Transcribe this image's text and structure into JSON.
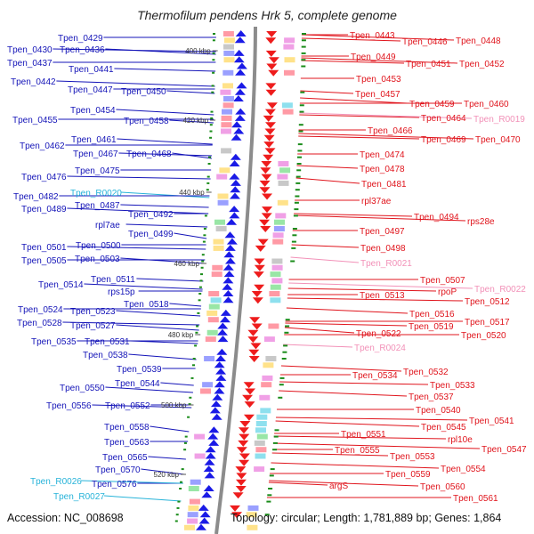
{
  "title": "Thermofilum pendens Hrk 5, complete genome",
  "accession": "Accession: NC_008698",
  "summary": "Topology: circular; Length: 1,781,889 bp; Genes: 1,864",
  "colors": {
    "left_gene": "#1414b8",
    "left_rna": "#27b3d9",
    "right_gene": "#e0141c",
    "right_rna": "#f291b8",
    "backbone": "#8c8c8c",
    "tick": "#1a8c1a"
  },
  "scale_labels": [
    "400 kbp",
    "420 kbp",
    "440 kbp",
    "460 kbp",
    "480 kbp",
    "500 kbp",
    "520 kbp"
  ],
  "left_genes": [
    {
      "label": "Tpen_0429",
      "type": "gene"
    },
    {
      "label": "Tpen_0430",
      "type": "gene"
    },
    {
      "label": "Tpen_0436",
      "type": "gene"
    },
    {
      "label": "Tpen_0437",
      "type": "gene"
    },
    {
      "label": "Tpen_0441",
      "type": "gene"
    },
    {
      "label": "Tpen_0442",
      "type": "gene"
    },
    {
      "label": "Tpen_0447",
      "type": "gene"
    },
    {
      "label": "Tpen_0450",
      "type": "gene"
    },
    {
      "label": "Tpen_0454",
      "type": "gene"
    },
    {
      "label": "Tpen_0455",
      "type": "gene"
    },
    {
      "label": "Tpen_0458",
      "type": "gene"
    },
    {
      "label": "Tpen_0461",
      "type": "gene"
    },
    {
      "label": "Tpen_0462",
      "type": "gene"
    },
    {
      "label": "Tpen_0467",
      "type": "gene"
    },
    {
      "label": "Tpen_0468",
      "type": "gene"
    },
    {
      "label": "Tpen_0475",
      "type": "gene"
    },
    {
      "label": "Tpen_0476",
      "type": "gene"
    },
    {
      "label": "Tpen_R0020",
      "type": "rna"
    },
    {
      "label": "Tpen_0482",
      "type": "gene"
    },
    {
      "label": "Tpen_0487",
      "type": "gene"
    },
    {
      "label": "Tpen_0489",
      "type": "gene"
    },
    {
      "label": "Tpen_0492",
      "type": "gene"
    },
    {
      "label": "rpl7ae",
      "type": "gene"
    },
    {
      "label": "Tpen_0499",
      "type": "gene"
    },
    {
      "label": "Tpen_0500",
      "type": "gene"
    },
    {
      "label": "Tpen_0501",
      "type": "gene"
    },
    {
      "label": "Tpen_0503",
      "type": "gene"
    },
    {
      "label": "Tpen_0505",
      "type": "gene"
    },
    {
      "label": "Tpen_0511",
      "type": "gene"
    },
    {
      "label": "Tpen_0514",
      "type": "gene"
    },
    {
      "label": "rps15p",
      "type": "gene"
    },
    {
      "label": "Tpen_0518",
      "type": "gene"
    },
    {
      "label": "Tpen_0523",
      "type": "gene"
    },
    {
      "label": "Tpen_0524",
      "type": "gene"
    },
    {
      "label": "Tpen_0528",
      "type": "gene"
    },
    {
      "label": "Tpen_0527",
      "type": "gene"
    },
    {
      "label": "Tpen_0535",
      "type": "gene"
    },
    {
      "label": "Tpen_0531",
      "type": "gene"
    },
    {
      "label": "Tpen_0538",
      "type": "gene"
    },
    {
      "label": "Tpen_0539",
      "type": "gene"
    },
    {
      "label": "Tpen_0544",
      "type": "gene"
    },
    {
      "label": "Tpen_0550",
      "type": "gene"
    },
    {
      "label": "Tpen_0552",
      "type": "gene"
    },
    {
      "label": "Tpen_0556",
      "type": "gene"
    },
    {
      "label": "Tpen_0558",
      "type": "gene"
    },
    {
      "label": "Tpen_0563",
      "type": "gene"
    },
    {
      "label": "Tpen_0565",
      "type": "gene"
    },
    {
      "label": "Tpen_0570",
      "type": "gene"
    },
    {
      "label": "Tpen_0576",
      "type": "gene"
    },
    {
      "label": "Tpen_R0026",
      "type": "rna"
    },
    {
      "label": "Tpen_R0027",
      "type": "rna"
    }
  ],
  "right_genes": [
    {
      "label": "Tpen_0443",
      "type": "gene"
    },
    {
      "label": "Tpen_0446",
      "type": "gene"
    },
    {
      "label": "Tpen_0448",
      "type": "gene"
    },
    {
      "label": "Tpen_0449",
      "type": "gene"
    },
    {
      "label": "Tpen_0451",
      "type": "gene"
    },
    {
      "label": "Tpen_0452",
      "type": "gene"
    },
    {
      "label": "Tpen_0453",
      "type": "gene"
    },
    {
      "label": "Tpen_0457",
      "type": "gene"
    },
    {
      "label": "Tpen_0459",
      "type": "gene"
    },
    {
      "label": "Tpen_0460",
      "type": "gene"
    },
    {
      "label": "Tpen_0464",
      "type": "gene"
    },
    {
      "label": "Tpen_R0019",
      "type": "rna"
    },
    {
      "label": "Tpen_0466",
      "type": "gene"
    },
    {
      "label": "Tpen_0469",
      "type": "gene"
    },
    {
      "label": "Tpen_0470",
      "type": "gene"
    },
    {
      "label": "Tpen_0474",
      "type": "gene"
    },
    {
      "label": "Tpen_0478",
      "type": "gene"
    },
    {
      "label": "Tpen_0481",
      "type": "gene"
    },
    {
      "label": "rpl37ae",
      "type": "gene"
    },
    {
      "label": "Tpen_0494",
      "type": "gene"
    },
    {
      "label": "rps28e",
      "type": "gene"
    },
    {
      "label": "Tpen_0497",
      "type": "gene"
    },
    {
      "label": "Tpen_0498",
      "type": "gene"
    },
    {
      "label": "Tpen_R0021",
      "type": "rna"
    },
    {
      "label": "Tpen_0507",
      "type": "gene"
    },
    {
      "label": "rpoP",
      "type": "gene"
    },
    {
      "label": "Tpen_R0022",
      "type": "rna"
    },
    {
      "label": "Tpen_0513",
      "type": "gene"
    },
    {
      "label": "Tpen_0512",
      "type": "gene"
    },
    {
      "label": "Tpen_0516",
      "type": "gene"
    },
    {
      "label": "Tpen_0517",
      "type": "gene"
    },
    {
      "label": "Tpen_0519",
      "type": "gene"
    },
    {
      "label": "Tpen_0522",
      "type": "gene"
    },
    {
      "label": "Tpen_0520",
      "type": "gene"
    },
    {
      "label": "Tpen_R0024",
      "type": "rna"
    },
    {
      "label": "Tpen_0532",
      "type": "gene"
    },
    {
      "label": "Tpen_0534",
      "type": "gene"
    },
    {
      "label": "Tpen_0533",
      "type": "gene"
    },
    {
      "label": "Tpen_0537",
      "type": "gene"
    },
    {
      "label": "Tpen_0540",
      "type": "gene"
    },
    {
      "label": "Tpen_0541",
      "type": "gene"
    },
    {
      "label": "Tpen_0545",
      "type": "gene"
    },
    {
      "label": "Tpen_0551",
      "type": "gene"
    },
    {
      "label": "rpl10e",
      "type": "gene"
    },
    {
      "label": "Tpen_0547",
      "type": "gene"
    },
    {
      "label": "Tpen_0555",
      "type": "gene"
    },
    {
      "label": "Tpen_0553",
      "type": "gene"
    },
    {
      "label": "Tpen_0554",
      "type": "gene"
    },
    {
      "label": "Tpen_0559",
      "type": "gene"
    },
    {
      "label": "argS",
      "type": "gene"
    },
    {
      "label": "Tpen_0560",
      "type": "gene"
    },
    {
      "label": "Tpen_0561",
      "type": "gene"
    }
  ]
}
